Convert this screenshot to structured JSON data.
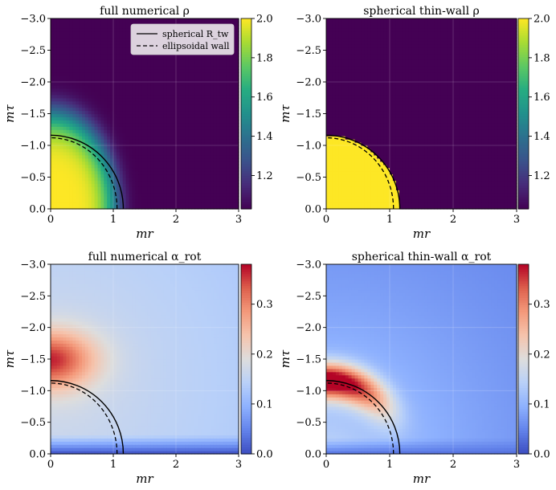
{
  "chart_data": [
    {
      "type": "heatmap",
      "title": "full numerical ρ",
      "xlabel": "mr",
      "ylabel": "mτ",
      "xlim": [
        0,
        3
      ],
      "ylim": [
        0,
        -3
      ],
      "xticks": [
        "0",
        "1",
        "2",
        "3"
      ],
      "yticks": [
        "0.0",
        "−0.5",
        "−1.0",
        "−1.5",
        "−2.0",
        "−2.5",
        "−3.0"
      ],
      "colormap": "viridis",
      "colorbar": {
        "range": [
          1.03,
          2.0
        ],
        "ticks": [
          "1.2",
          "1.4",
          "1.6",
          "1.8",
          "2.0"
        ]
      },
      "field": {
        "kind": "smooth_bubble",
        "inner": 2.0,
        "outer": 1.03,
        "rx": 1.05,
        "ry": 1.55,
        "sharpness": 3
      },
      "curves": {
        "spherical_radius": 1.16,
        "ellipsoid_rx": 1.06,
        "ellipsoid_ry": 1.12
      },
      "legend": {
        "position": "top-right",
        "entries": [
          "spherical R_tw",
          "ellipsoidal wall"
        ]
      }
    },
    {
      "type": "heatmap",
      "title": "spherical thin-wall ρ",
      "xlabel": "mr",
      "ylabel": "mτ",
      "xlim": [
        0,
        3
      ],
      "ylim": [
        0,
        -3
      ],
      "xticks": [
        "0",
        "1",
        "2",
        "3"
      ],
      "yticks": [
        "0.0",
        "−0.5",
        "−1.0",
        "−1.5",
        "−2.0",
        "−2.5",
        "−3.0"
      ],
      "colormap": "viridis",
      "colorbar": {
        "range": [
          1.03,
          2.0
        ],
        "ticks": [
          "1.2",
          "1.4",
          "1.6",
          "1.8",
          "2.0"
        ]
      },
      "field": {
        "kind": "step_bubble",
        "inner": 2.0,
        "outer": 1.03,
        "radius": 1.16
      },
      "curves": {
        "spherical_radius": 1.16,
        "ellipsoid_rx": 1.06,
        "ellipsoid_ry": 1.12
      }
    },
    {
      "type": "heatmap",
      "title": "full numerical α_rot",
      "xlabel": "mr",
      "ylabel": "mτ",
      "xlim": [
        0,
        3
      ],
      "ylim": [
        0,
        -3
      ],
      "xticks": [
        "0",
        "1",
        "2",
        "3"
      ],
      "yticks": [
        "0.0",
        "−0.5",
        "−1.0",
        "−1.5",
        "−2.0",
        "−2.5",
        "−3.0"
      ],
      "colormap": "coolwarm",
      "colorbar": {
        "range": [
          0.0,
          0.38
        ],
        "ticks": [
          "0.0",
          "0.1",
          "0.2",
          "0.3"
        ]
      },
      "field": {
        "kind": "rot_blob",
        "base": 0.1,
        "peak": 0.27,
        "cr": 0.0,
        "ct": 1.5,
        "sr": 0.7,
        "st": 0.45,
        "bottom_fade": 0.3
      },
      "curves": {
        "spherical_radius": 1.16,
        "ellipsoid_rx": 1.06,
        "ellipsoid_ry": 1.12
      }
    },
    {
      "type": "heatmap",
      "title": "spherical thin-wall α_rot",
      "xlabel": "mr",
      "ylabel": "mτ",
      "xlim": [
        0,
        3
      ],
      "ylim": [
        0,
        -3
      ],
      "xticks": [
        "0",
        "1",
        "2",
        "3"
      ],
      "yticks": [
        "0.0",
        "−0.5",
        "−1.0",
        "−1.5",
        "−2.0",
        "−2.5",
        "−3.0"
      ],
      "colormap": "coolwarm",
      "colorbar": {
        "range": [
          0.0,
          0.38
        ],
        "ticks": [
          "0.0",
          "0.1",
          "0.2",
          "0.3"
        ]
      },
      "field": {
        "kind": "rot_ring",
        "base": 0.12,
        "peak": 0.38,
        "ring_radius": 1.16,
        "ring_width": 0.28
      },
      "curves": {
        "spherical_radius": 1.16,
        "ellipsoid_rx": 1.06,
        "ellipsoid_ry": 1.12
      }
    }
  ]
}
